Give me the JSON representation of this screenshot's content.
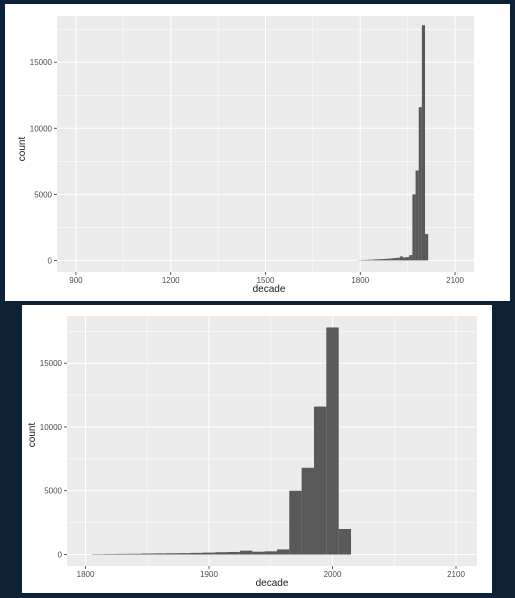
{
  "chart_data": [
    {
      "type": "bar",
      "xlabel": "decade",
      "ylabel": "count",
      "xlim": [
        840,
        2160
      ],
      "ylim": [
        -880,
        18500
      ],
      "xticks": [
        900,
        1200,
        1500,
        1800,
        2100
      ],
      "yticks": [
        0,
        5000,
        10000,
        15000
      ],
      "grid": true,
      "bar_width": 10,
      "x": [
        1800,
        1810,
        1820,
        1830,
        1840,
        1850,
        1860,
        1870,
        1880,
        1890,
        1900,
        1910,
        1920,
        1930,
        1940,
        1950,
        1960,
        1970,
        1980,
        1990,
        2000,
        2010
      ],
      "values": [
        10,
        30,
        40,
        50,
        60,
        80,
        90,
        100,
        110,
        130,
        150,
        180,
        200,
        300,
        220,
        250,
        400,
        5000,
        6800,
        11600,
        17800,
        2000
      ],
      "colors": {
        "panel": "#ebebeb",
        "grid": "#ffffff",
        "bar": "#595959"
      }
    },
    {
      "type": "bar",
      "xlabel": "decade",
      "ylabel": "count",
      "xlim": [
        1785,
        2117
      ],
      "ylim": [
        -900,
        18700
      ],
      "xticks": [
        1800,
        1900,
        2000,
        2100
      ],
      "yticks": [
        0,
        5000,
        10000,
        15000
      ],
      "grid": true,
      "bar_width": 10,
      "x": [
        1810,
        1820,
        1830,
        1840,
        1850,
        1860,
        1870,
        1880,
        1890,
        1900,
        1910,
        1920,
        1930,
        1940,
        1950,
        1960,
        1970,
        1980,
        1990,
        2000,
        2010
      ],
      "values": [
        30,
        40,
        50,
        60,
        80,
        90,
        100,
        110,
        130,
        150,
        180,
        200,
        300,
        220,
        250,
        400,
        5000,
        6800,
        11600,
        17800,
        2000
      ],
      "colors": {
        "panel": "#ebebeb",
        "grid": "#ffffff",
        "bar": "#595959"
      }
    }
  ]
}
